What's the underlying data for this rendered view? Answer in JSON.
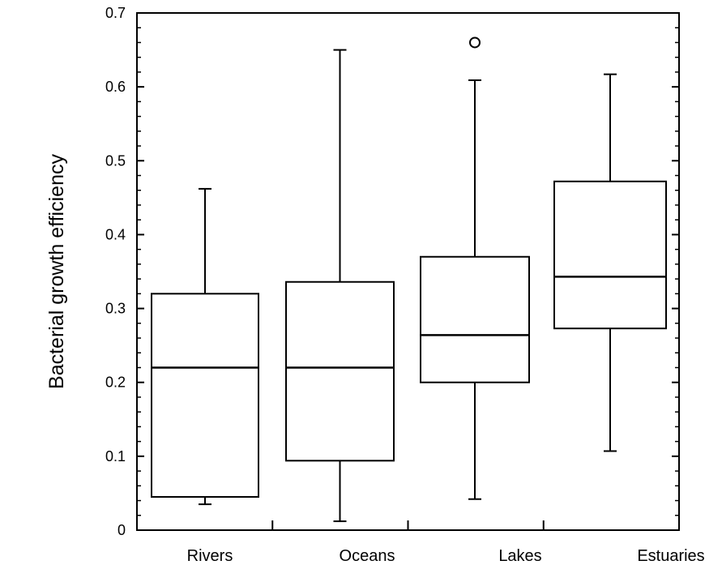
{
  "chart_data": {
    "type": "box",
    "title": "",
    "xlabel": "",
    "ylabel": "Bacterial growth efficiency",
    "ylim": [
      0,
      0.7
    ],
    "yticks": [
      "0",
      "0.1",
      "0.2",
      "0.3",
      "0.4",
      "0.5",
      "0.6",
      "0.7"
    ],
    "categories": [
      "Rivers",
      "Oceans",
      "Lakes",
      "Estuaries"
    ],
    "boxes": [
      {
        "category": "Rivers",
        "whisker_low": 0.035,
        "q1": 0.045,
        "median": 0.22,
        "q3": 0.32,
        "whisker_high": 0.462,
        "outliers": []
      },
      {
        "category": "Oceans",
        "whisker_low": 0.012,
        "q1": 0.094,
        "median": 0.22,
        "q3": 0.336,
        "whisker_high": 0.65,
        "outliers": []
      },
      {
        "category": "Lakes",
        "whisker_low": 0.042,
        "q1": 0.2,
        "median": 0.264,
        "q3": 0.37,
        "whisker_high": 0.609,
        "outliers": [
          0.66
        ]
      },
      {
        "category": "Estuaries",
        "whisker_low": 0.107,
        "q1": 0.273,
        "median": 0.343,
        "q3": 0.472,
        "whisker_high": 0.617,
        "outliers": []
      }
    ],
    "grid": false,
    "legend": "none"
  }
}
